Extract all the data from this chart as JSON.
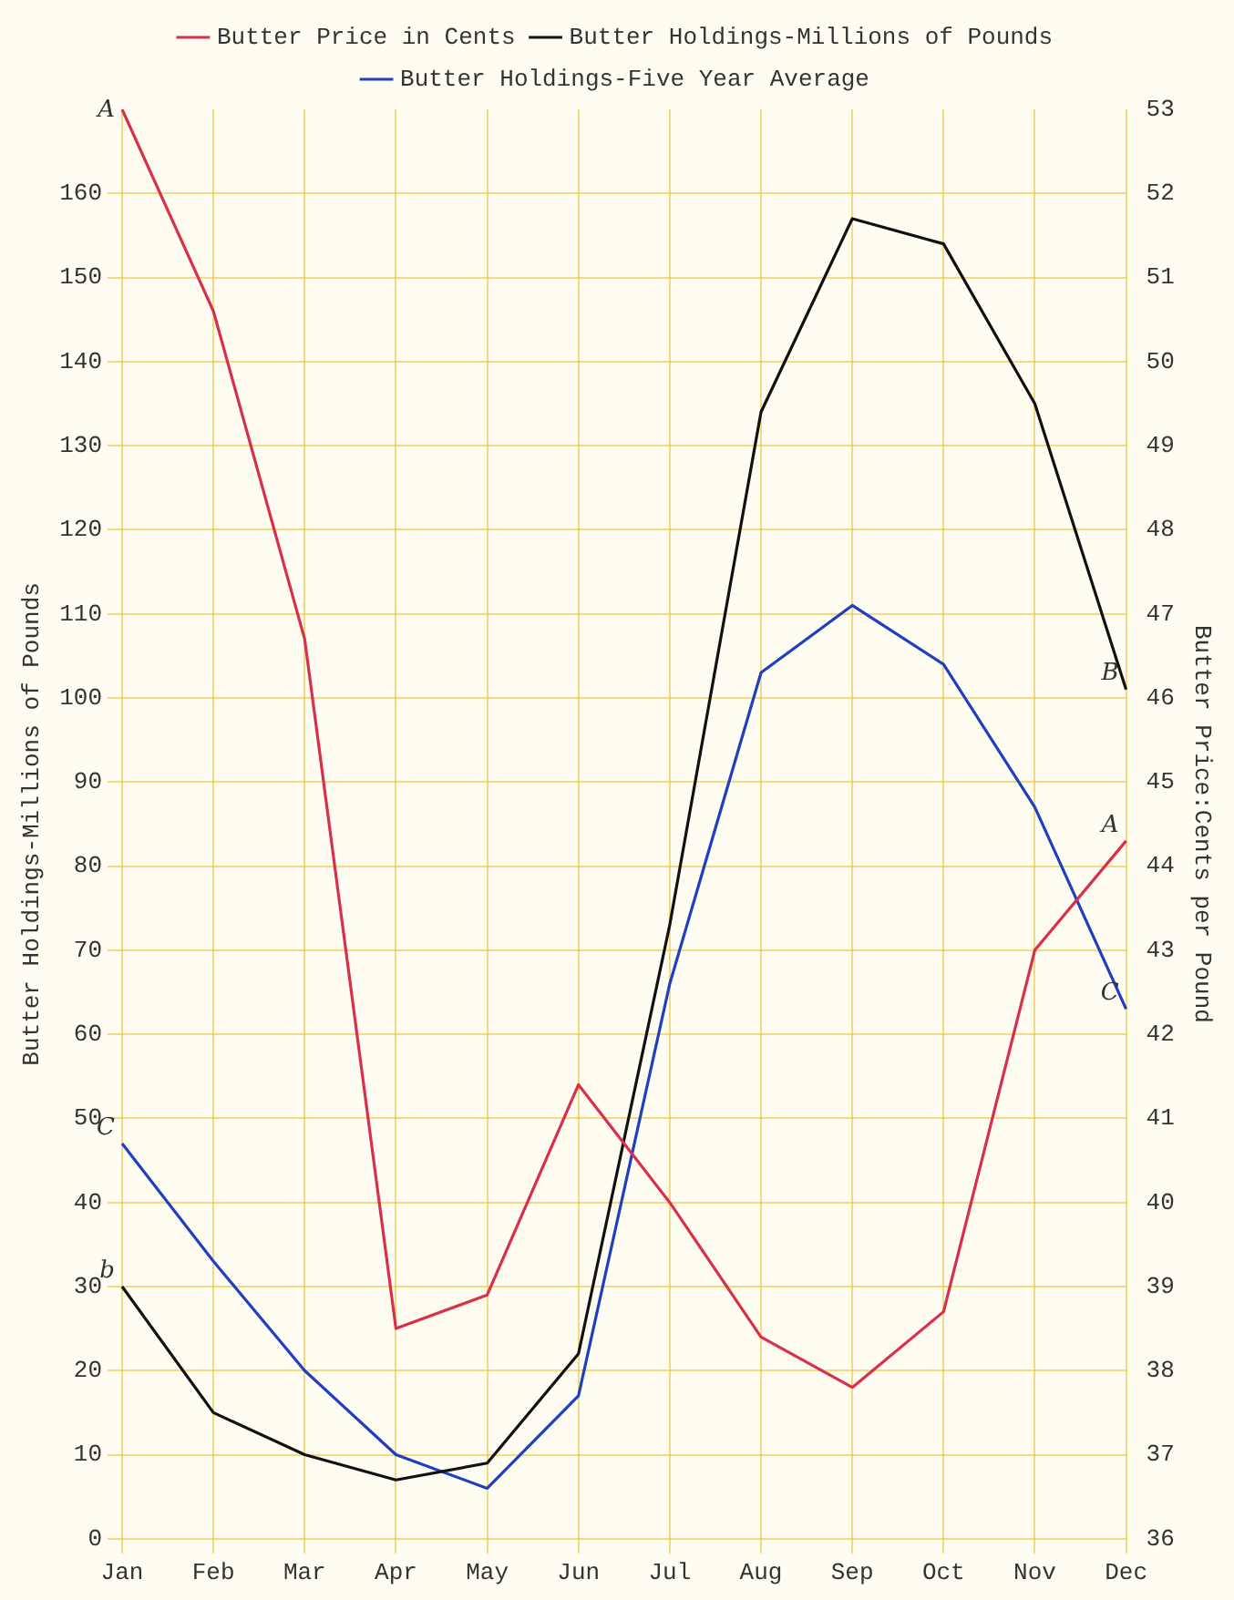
{
  "chart_data": {
    "type": "line",
    "ylabel": "Butter Holdings-Millions of Pounds",
    "y2label": "Butter Price:Cents per Pound",
    "categories": [
      "Jan",
      "Feb",
      "Mar",
      "Apr",
      "May",
      "Jun",
      "Jul",
      "Aug",
      "Sep",
      "Oct",
      "Nov",
      "Dec"
    ],
    "series": [
      {
        "name": "Butter Price in Cents",
        "color": "#d8304a",
        "axis": "y2",
        "values": [
          53.0,
          50.6,
          46.7,
          38.5,
          38.9,
          41.4,
          40.0,
          38.4,
          37.8,
          38.7,
          43.0,
          44.3
        ]
      },
      {
        "name": "Butter Holdings-Millions of Pounds",
        "color": "#111111",
        "values": [
          30,
          15,
          10,
          7,
          9,
          22,
          73,
          134,
          157,
          154,
          135,
          101
        ]
      },
      {
        "name": "Butter Holdings-Five Year Average",
        "color": "#1f3fc0",
        "values": [
          47,
          33,
          20,
          10,
          6,
          17,
          66,
          103,
          111,
          104,
          87,
          63
        ]
      }
    ],
    "ylim": [
      0,
      170
    ],
    "yticks": [
      0,
      10,
      20,
      30,
      40,
      50,
      60,
      70,
      80,
      90,
      100,
      110,
      120,
      130,
      140,
      150,
      160
    ],
    "y2lim": [
      36,
      53
    ],
    "y2ticks": [
      36,
      37,
      38,
      39,
      40,
      41,
      42,
      43,
      44,
      45,
      46,
      47,
      48,
      49,
      50,
      51,
      52,
      53
    ],
    "annotations": [
      {
        "text": "A",
        "x": "Jan",
        "y": 168
      },
      {
        "text": "b",
        "x": "Jan",
        "y": 30
      },
      {
        "text": "C",
        "x": "Jan",
        "y": 47
      },
      {
        "text": "B",
        "x": "Dec",
        "y": 101
      },
      {
        "text": "A",
        "x": "Dec",
        "y": 83
      },
      {
        "text": "C",
        "x": "Dec",
        "y": 63
      }
    ],
    "grid": true,
    "legend": "top",
    "marker": "none",
    "line_style": "solid"
  }
}
